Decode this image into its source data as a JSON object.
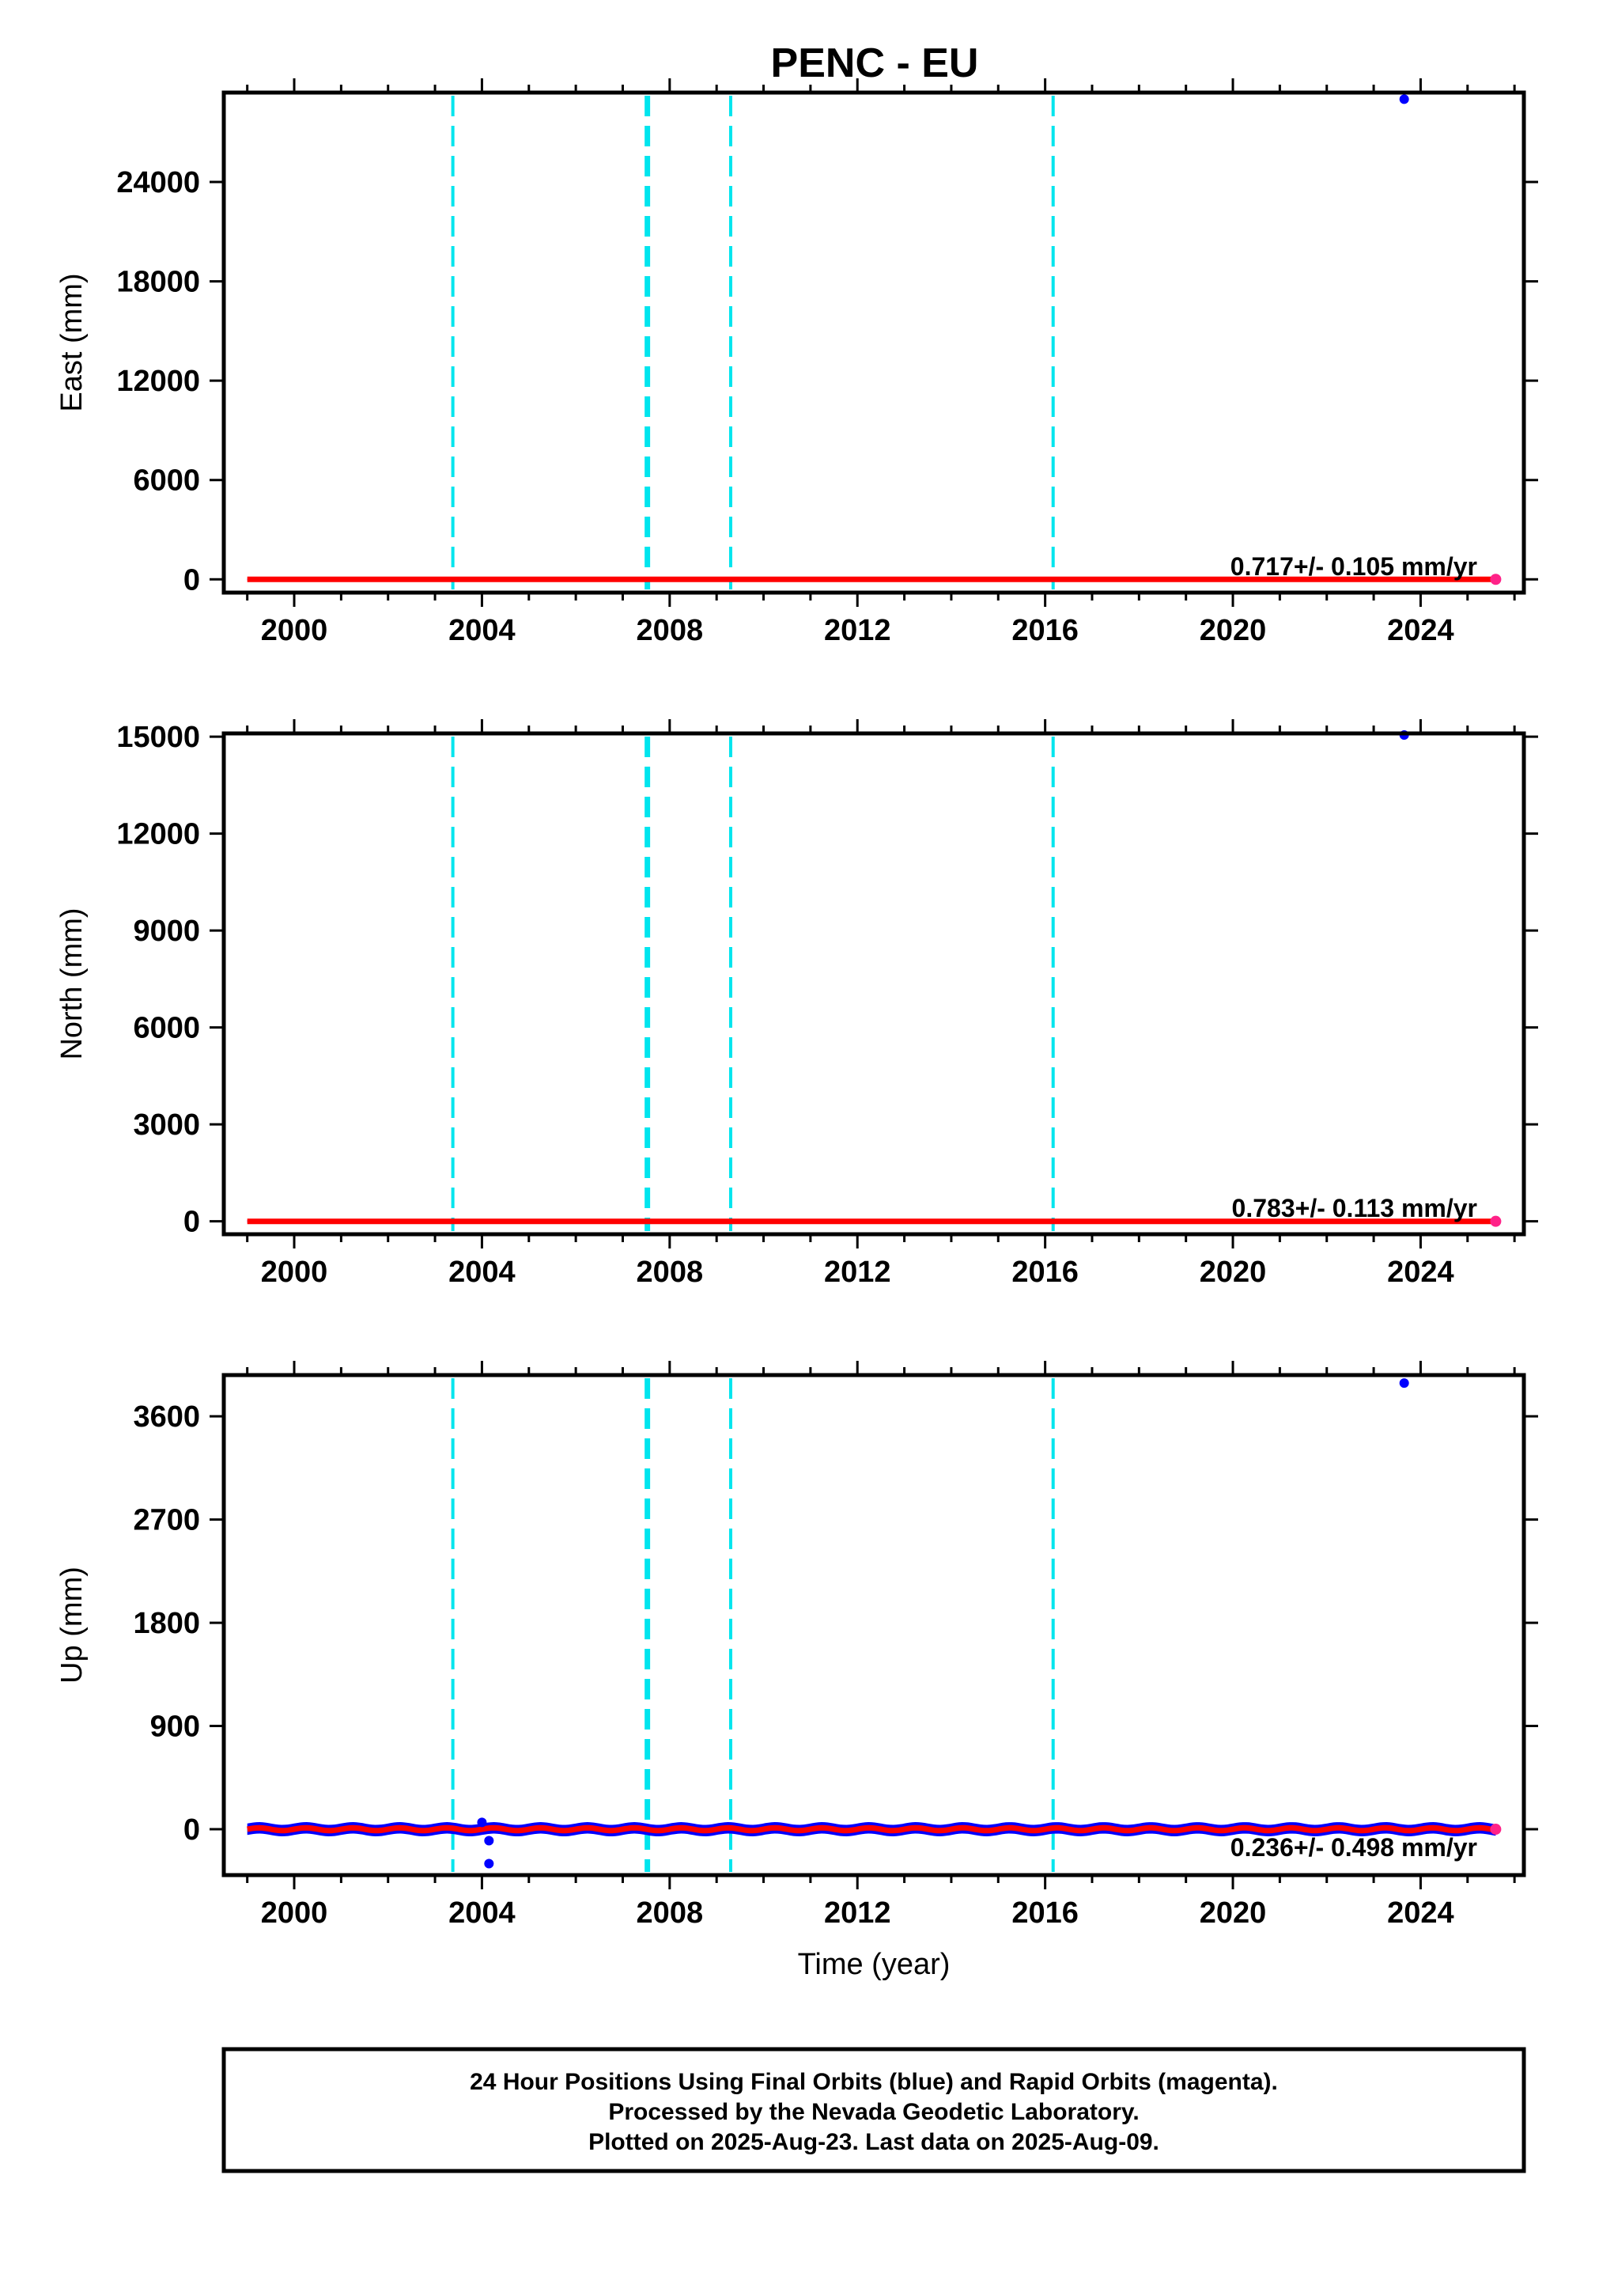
{
  "chart_data": {
    "type": "scatter",
    "title": "PENC - EU",
    "xlabel": "Time (year)",
    "x_ticks": [
      "2000",
      "2004",
      "2008",
      "2012",
      "2016",
      "2020",
      "2024"
    ],
    "xlim": [
      1998.5,
      2026.2
    ],
    "x_range_data": [
      1999.0,
      2025.6
    ],
    "steps": [
      2003.38,
      2007.5,
      2007.55,
      2009.3,
      2016.17
    ],
    "series_colors": {
      "final": "#0000ff",
      "rapid": "#ff2288",
      "model": "#ff0000",
      "steps": "#00e5ee"
    },
    "panels": [
      {
        "name": "east",
        "ylabel": "East (mm)",
        "ylim": [
          -800,
          29400
        ],
        "yticks": [
          0,
          6000,
          12000,
          18000,
          24000
        ],
        "ytick_labels": [
          "0",
          "6000",
          "12000",
          "18000",
          "24000"
        ],
        "rate": "0.717+/- 0.105 mm/yr",
        "outliers": [
          {
            "x": 2023.65,
            "y": 29000
          }
        ],
        "band_amplitude": 40
      },
      {
        "name": "north",
        "ylabel": "North (mm)",
        "ylim": [
          -400,
          15100
        ],
        "yticks": [
          0,
          3000,
          6000,
          9000,
          12000,
          15000
        ],
        "ytick_labels": [
          "0",
          "3000",
          "6000",
          "9000",
          "12000",
          "15000"
        ],
        "rate": "0.783+/- 0.113 mm/yr",
        "outliers": [
          {
            "x": 2023.65,
            "y": 15050
          }
        ],
        "band_amplitude": 40
      },
      {
        "name": "up",
        "ylabel": "Up (mm)",
        "ylim": [
          -400,
          3960
        ],
        "yticks": [
          0,
          900,
          1800,
          2700,
          3600
        ],
        "ytick_labels": [
          "0",
          "900",
          "1800",
          "2700",
          "3600"
        ],
        "rate": "0.236+/- 0.498 mm/yr",
        "outliers": [
          {
            "x": 2004.0,
            "y": 60
          },
          {
            "x": 2004.15,
            "y": -100
          },
          {
            "x": 2004.15,
            "y": -300
          },
          {
            "x": 2023.65,
            "y": 3890
          }
        ],
        "band_amplitude": 50
      }
    ]
  },
  "footer": {
    "line1": "24 Hour Positions Using Final Orbits (blue) and Rapid Orbits (magenta).",
    "line2": "Processed by the Nevada Geodetic Laboratory.",
    "line3": "Plotted on 2025-Aug-23. Last data on 2025-Aug-09."
  }
}
